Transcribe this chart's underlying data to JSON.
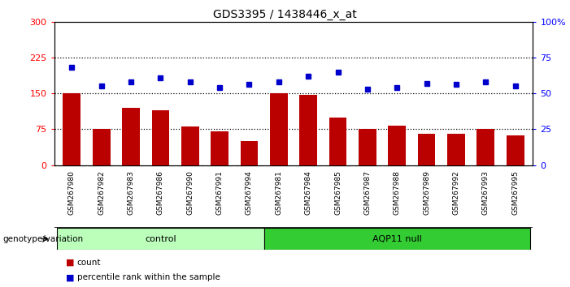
{
  "title": "GDS3395 / 1438446_x_at",
  "samples": [
    "GSM267980",
    "GSM267982",
    "GSM267983",
    "GSM267986",
    "GSM267990",
    "GSM267991",
    "GSM267994",
    "GSM267981",
    "GSM267984",
    "GSM267985",
    "GSM267987",
    "GSM267988",
    "GSM267989",
    "GSM267992",
    "GSM267993",
    "GSM267995"
  ],
  "counts": [
    150,
    75,
    120,
    115,
    80,
    70,
    50,
    150,
    147,
    100,
    75,
    82,
    65,
    65,
    75,
    62
  ],
  "percentiles": [
    68,
    55,
    58,
    61,
    58,
    54,
    56,
    58,
    62,
    65,
    53,
    54,
    57,
    56,
    58,
    55
  ],
  "control_n": 7,
  "aqp11_n": 9,
  "bar_color": "#bb0000",
  "dot_color": "#0000cc",
  "left_ylim": [
    0,
    300
  ],
  "right_ylim": [
    0,
    100
  ],
  "left_yticks": [
    0,
    75,
    150,
    225,
    300
  ],
  "right_yticks": [
    0,
    25,
    50,
    75,
    100
  ],
  "right_yticklabels": [
    "0",
    "25",
    "50",
    "75",
    "100%"
  ],
  "grid_vals": [
    75,
    150,
    225
  ],
  "plot_bg": "#ffffff",
  "cell_bg": "#d4d4d4",
  "control_bg": "#bbffbb",
  "aqp11_bg": "#33cc33",
  "genotype_label": "genotype/variation",
  "legend_count": "count",
  "legend_pct": "percentile rank within the sample"
}
